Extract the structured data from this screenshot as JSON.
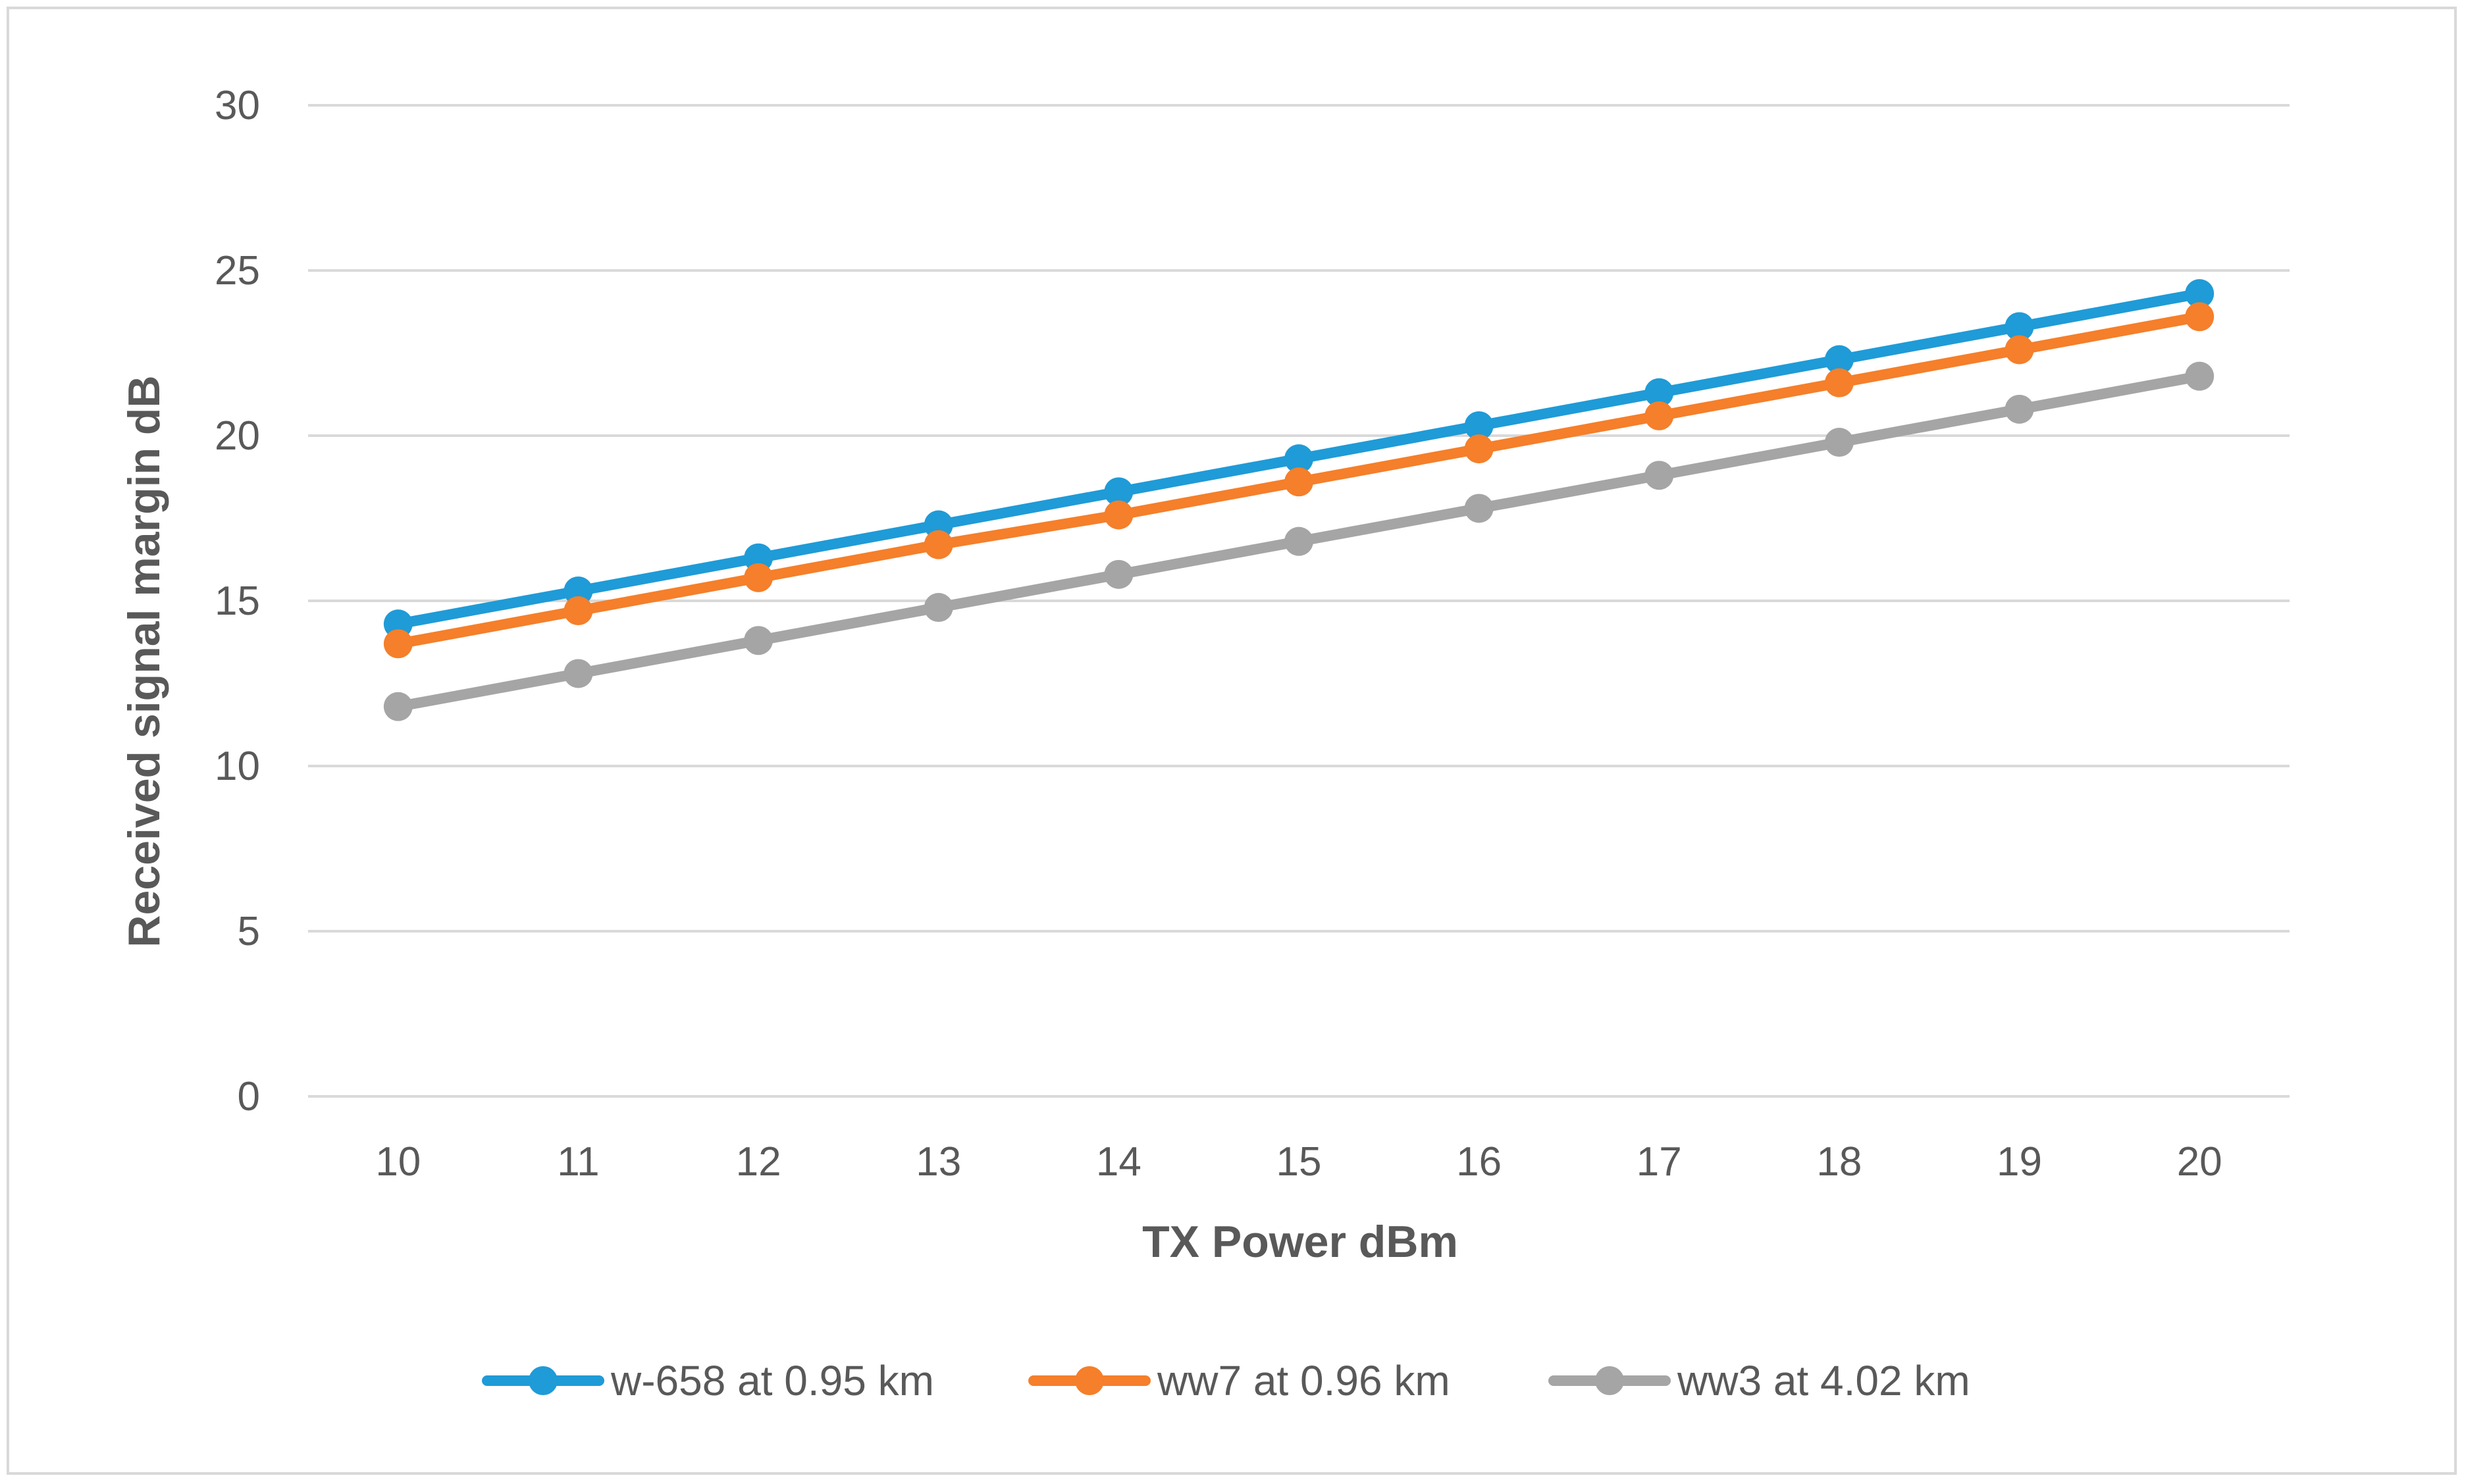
{
  "chart_data": {
    "type": "line",
    "title": "",
    "xlabel": "TX Power dBm",
    "ylabel": "Received signal margin dB",
    "x": [
      10,
      11,
      12,
      13,
      14,
      15,
      16,
      17,
      18,
      19,
      20
    ],
    "ylim": [
      0,
      30
    ],
    "yticks": [
      0,
      5,
      10,
      15,
      20,
      25,
      30
    ],
    "grid": true,
    "legend_position": "bottom",
    "series": [
      {
        "name": "w-658 at 0.95 km",
        "color": "#1f9bd7",
        "values": [
          14.3,
          15.3,
          16.3,
          17.3,
          18.3,
          19.3,
          20.3,
          21.3,
          22.3,
          23.3,
          24.3
        ]
      },
      {
        "name": "ww7 at 0.96 km",
        "color": "#f57f2a",
        "values": [
          13.7,
          14.7,
          15.7,
          16.7,
          17.6,
          18.6,
          19.6,
          20.6,
          21.6,
          22.6,
          23.6
        ]
      },
      {
        "name": "ww3 at 4.02 km",
        "color": "#a5a5a5",
        "values": [
          11.8,
          12.8,
          13.8,
          14.8,
          15.8,
          16.8,
          17.8,
          18.8,
          19.8,
          20.8,
          21.8
        ]
      }
    ]
  }
}
